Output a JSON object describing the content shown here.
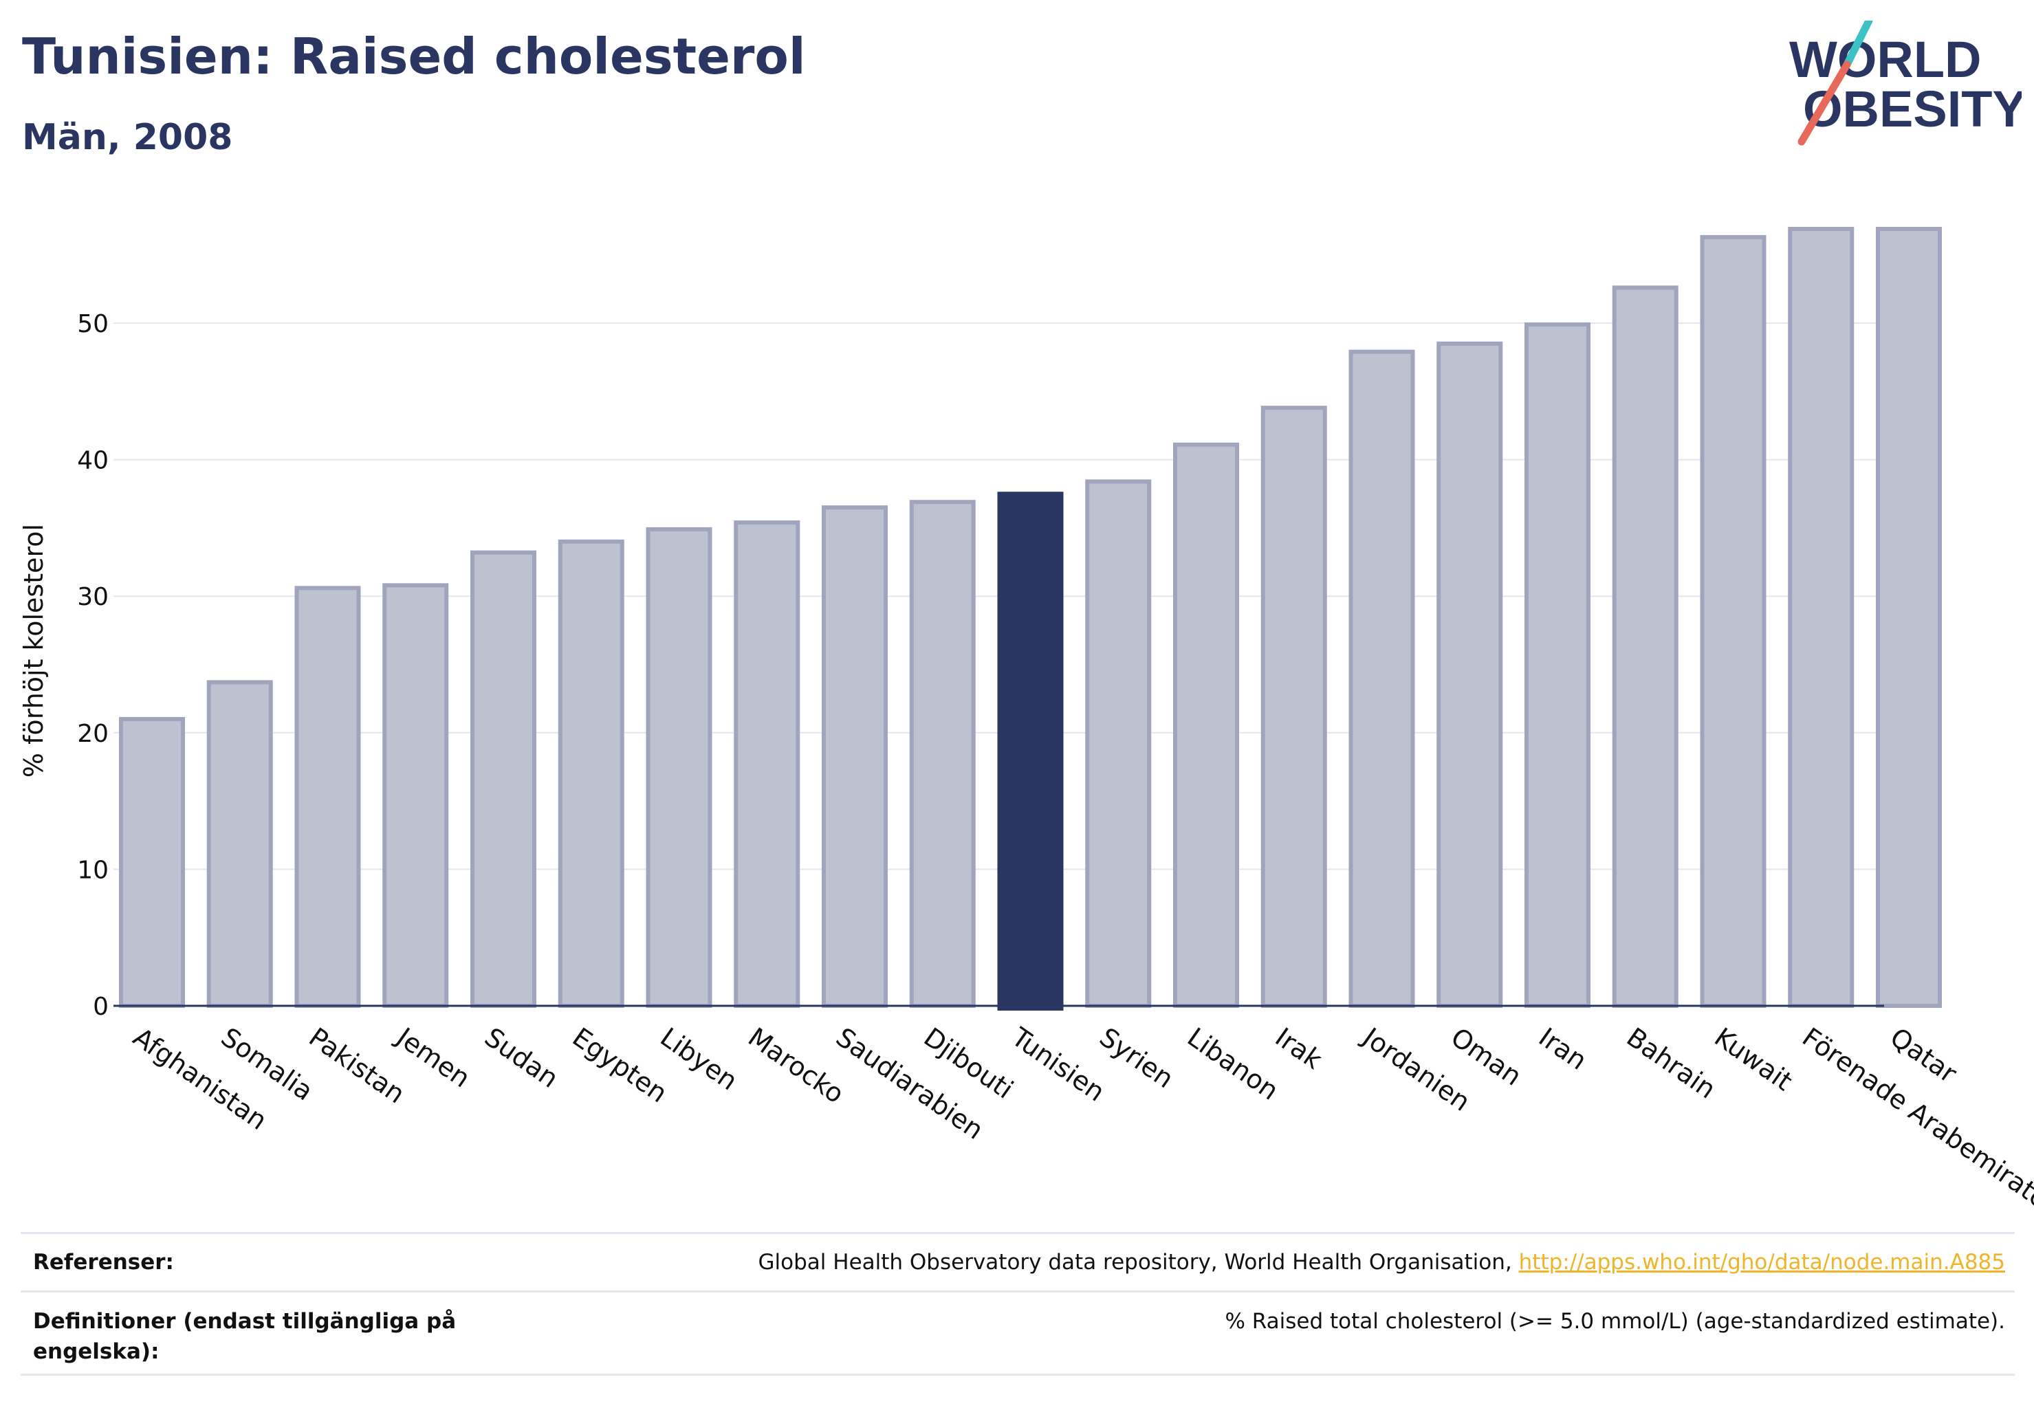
{
  "header": {
    "title": "Tunisien: Raised cholesterol",
    "subtitle": "Män, 2008"
  },
  "logo": {
    "line1": "WORLD",
    "line2": "OBESITY"
  },
  "colors": {
    "highlight": "#2b3561",
    "bar_fill": "#bec1cf",
    "bar_stroke": "#a0a5bd",
    "grid": "#e6e6ec",
    "text": "#2b3561",
    "link": "#f0b429",
    "logo_teal": "#3cc1c4",
    "logo_coral": "#e8685a"
  },
  "chart_data": {
    "type": "bar",
    "ylabel": "% förhöjt kolesterol",
    "xlabel": "",
    "ylim": [
      0,
      60
    ],
    "yticks": [
      0,
      10,
      20,
      30,
      40,
      50
    ],
    "grid": true,
    "highlight": "Tunisien",
    "categories": [
      "Afghanistan",
      "Somalia",
      "Pakistan",
      "Jemen",
      "Sudan",
      "Egypten",
      "Libyen",
      "Marocko",
      "Saudiarabien",
      "Djibouti",
      "Tunisien",
      "Syrien",
      "Libanon",
      "Irak",
      "Jordanien",
      "Oman",
      "Iran",
      "Bahrain",
      "Kuwait",
      "Förenade Arabemiraten",
      "Qatar"
    ],
    "values": [
      21.0,
      23.7,
      30.6,
      30.8,
      33.2,
      34.0,
      34.9,
      35.4,
      36.5,
      36.9,
      37.5,
      38.4,
      41.1,
      43.8,
      47.9,
      48.5,
      49.9,
      52.6,
      56.3,
      56.9,
      56.9
    ]
  },
  "references": {
    "ref_label": "Referenser:",
    "ref_text": "Global Health Observatory data repository, World Health Organisation, ",
    "ref_link": "http://apps.who.int/gho/data/node.main.A885",
    "def_label": "Definitioner (endast tillgängliga på engelska):",
    "def_text": "% Raised total cholesterol (>= 5.0 mmol/L) (age-standardized estimate)."
  }
}
